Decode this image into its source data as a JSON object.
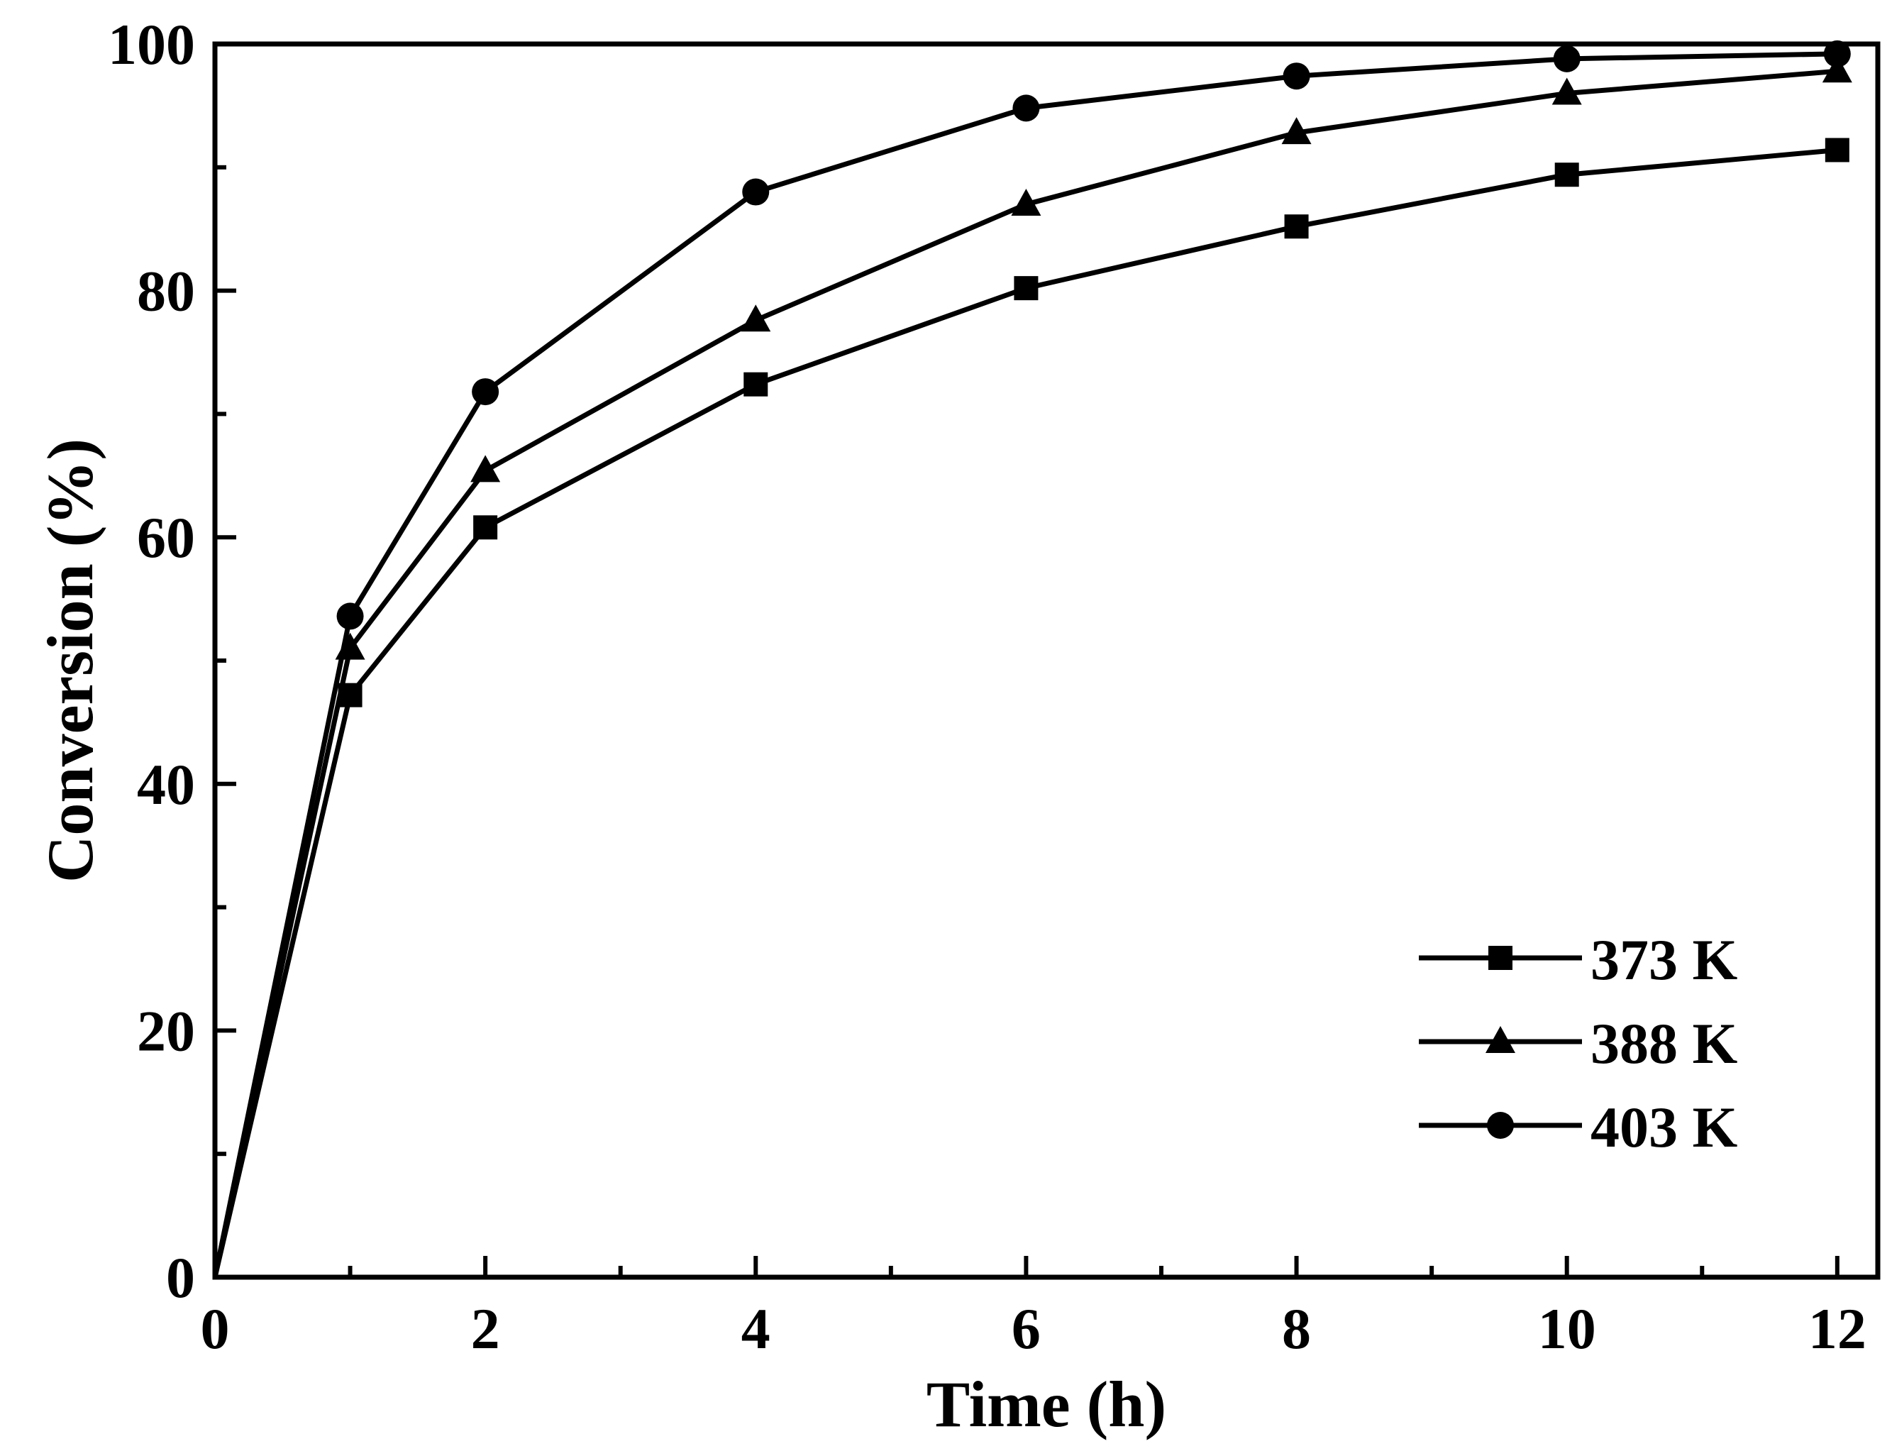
{
  "chart_data": {
    "type": "line",
    "title": "",
    "xlabel": "Time (h)",
    "ylabel": "Conversion (%)",
    "xlim": [
      0,
      12.3
    ],
    "ylim": [
      0,
      100
    ],
    "x_major_ticks": [
      0,
      2,
      4,
      6,
      8,
      10,
      12
    ],
    "x_minor_ticks": [
      1,
      3,
      5,
      7,
      9,
      11
    ],
    "y_major_ticks": [
      0,
      20,
      40,
      60,
      80,
      100
    ],
    "y_minor_ticks": [
      10,
      30,
      50,
      70,
      90
    ],
    "x_tick_labels": [
      "0",
      "2",
      "4",
      "6",
      "8",
      "10",
      "12"
    ],
    "y_tick_labels": [
      "0",
      "20",
      "40",
      "60",
      "80",
      "100"
    ],
    "legend_position": "bottom-right",
    "series": [
      {
        "name": "373 K",
        "marker": "square",
        "color": "#000000",
        "x": [
          0,
          1,
          2,
          4,
          6,
          8,
          10,
          12
        ],
        "y": [
          0,
          47.2,
          60.8,
          72.4,
          80.2,
          85.2,
          89.4,
          91.4
        ]
      },
      {
        "name": "388 K",
        "marker": "triangle",
        "color": "#000000",
        "x": [
          0,
          1,
          2,
          4,
          6,
          8,
          10,
          12
        ],
        "y": [
          0,
          51.0,
          65.4,
          77.6,
          87.0,
          92.8,
          96.0,
          97.8
        ]
      },
      {
        "name": "403 K",
        "marker": "circle",
        "color": "#000000",
        "x": [
          0,
          1,
          2,
          4,
          6,
          8,
          10,
          12
        ],
        "y": [
          0,
          53.6,
          71.8,
          88.0,
          94.8,
          97.4,
          98.8,
          99.2
        ]
      }
    ]
  }
}
